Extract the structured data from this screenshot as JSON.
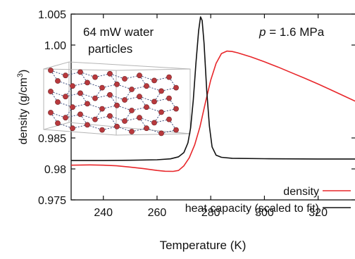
{
  "chart_data": {
    "type": "line",
    "xlabel": "Temperature (K)",
    "ylabel_main": "density (g/cm",
    "ylabel_sup": "3",
    "ylabel_close": ")",
    "xlim": [
      228,
      334
    ],
    "ylim": [
      0.975,
      1.005
    ],
    "xticks": [
      {
        "value": 240,
        "label": "240"
      },
      {
        "value": 260,
        "label": "260"
      },
      {
        "value": 280,
        "label": "280"
      },
      {
        "value": 300,
        "label": "300"
      },
      {
        "value": 320,
        "label": "320"
      }
    ],
    "yticks": [
      {
        "value": 0.975,
        "label": "0.975"
      },
      {
        "value": 0.98,
        "label": "0.98"
      },
      {
        "value": 0.985,
        "label": "0.985"
      },
      {
        "value": 1.0,
        "label": "1.00"
      },
      {
        "value": 1.005,
        "label": "1.005"
      }
    ],
    "annotations": {
      "system_line1": "64 mW water",
      "system_line2": "particles",
      "pressure_var": "p",
      "pressure_value": " = 1.6 MPa"
    },
    "legend_placement": "bottom-right",
    "series": [
      {
        "name": "density",
        "color": "#e8262a",
        "points": [
          [
            228,
            0.9806
          ],
          [
            235,
            0.98065
          ],
          [
            240,
            0.9806
          ],
          [
            245,
            0.9805
          ],
          [
            250,
            0.9803
          ],
          [
            255,
            0.98005
          ],
          [
            260,
            0.97975
          ],
          [
            263,
            0.97962
          ],
          [
            266,
            0.9796
          ],
          [
            268,
            0.97975
          ],
          [
            270,
            0.9805
          ],
          [
            272,
            0.9818
          ],
          [
            274,
            0.98385
          ],
          [
            276,
            0.9868
          ],
          [
            278,
            0.9907
          ],
          [
            280,
            0.99435
          ],
          [
            282,
            0.99705
          ],
          [
            284,
            0.99863
          ],
          [
            286,
            0.99902
          ],
          [
            288,
            0.99895
          ],
          [
            290,
            0.99875
          ],
          [
            295,
            0.99808
          ],
          [
            300,
            0.9973
          ],
          [
            305,
            0.99645
          ],
          [
            310,
            0.99555
          ],
          [
            315,
            0.99465
          ],
          [
            320,
            0.9937
          ],
          [
            325,
            0.99272
          ],
          [
            330,
            0.9917
          ],
          [
            334,
            0.9909
          ]
        ]
      },
      {
        "name": "heat capacity (scaled to fit)",
        "color": "#111111",
        "points": [
          [
            228,
            0.98135
          ],
          [
            240,
            0.98135
          ],
          [
            250,
            0.9814
          ],
          [
            260,
            0.98148
          ],
          [
            265,
            0.98162
          ],
          [
            268,
            0.98195
          ],
          [
            270,
            0.98265
          ],
          [
            271.5,
            0.9842
          ],
          [
            272.5,
            0.9866
          ],
          [
            273.5,
            0.9911
          ],
          [
            274.5,
            0.9971
          ],
          [
            275.5,
            1.00232
          ],
          [
            276.2,
            1.00455
          ],
          [
            276.8,
            1.00395
          ],
          [
            277.5,
            1.0003
          ],
          [
            278.5,
            0.99265
          ],
          [
            279.5,
            0.9869
          ],
          [
            280.5,
            0.98355
          ],
          [
            282,
            0.98222
          ],
          [
            284,
            0.98187
          ],
          [
            288,
            0.98172
          ],
          [
            300,
            0.98165
          ],
          [
            320,
            0.9816
          ],
          [
            334,
            0.9816
          ]
        ]
      }
    ]
  }
}
